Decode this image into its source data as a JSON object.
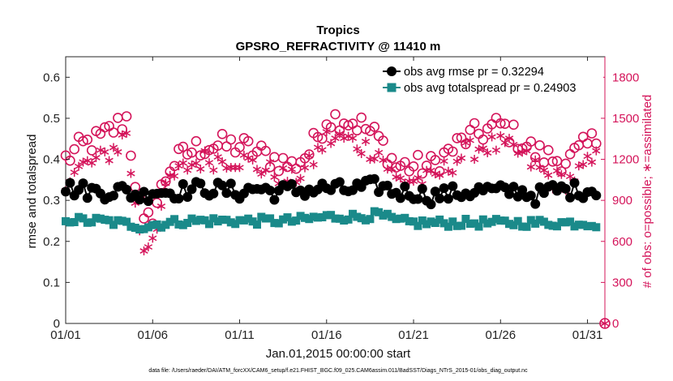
{
  "chart_data": {
    "type": "line",
    "title": "Tropics",
    "subtitle": "GPSRO_REFRACTIVITY @ 11410 m",
    "xlabel": "Jan.01,2015 00:00:00 start",
    "ylabel": "rmse and totalspread",
    "ylabel_right": "# of obs: o=possible; ∗=assimilated",
    "footnote": "data file: /Users/raeder/DAI/ATM_forcXX/CAM6_setup/f.e21.FHIST_BGC.f09_025.CAM6assim.011/BadSST/Diags_NTrS_2015-01/obs_diag_output.nc",
    "x_range": [
      1,
      32
    ],
    "x_ticks": [
      1,
      6,
      11,
      16,
      21,
      26,
      31
    ],
    "x_tick_labels": [
      "01/01",
      "01/06",
      "01/11",
      "01/16",
      "01/21",
      "01/26",
      "01/31"
    ],
    "ylim": [
      0,
      0.65
    ],
    "y_ticks": [
      0,
      0.1,
      0.2,
      0.3,
      0.4,
      0.5,
      0.6
    ],
    "y_tick_labels": [
      "0",
      "0.1",
      "0.2",
      "0.3",
      "0.4",
      "0.5",
      "0.6"
    ],
    "ylim_right": [
      0,
      1950
    ],
    "y_ticks_right": [
      0,
      300,
      600,
      900,
      1200,
      1500,
      1800
    ],
    "y_tick_labels_right": [
      "0",
      "300",
      "600",
      "900",
      "1200",
      "1500",
      "1800"
    ],
    "legend_position": "top-right",
    "series": [
      {
        "name": "obs avg rmse pr = 0.32294",
        "axis": "left",
        "marker": "circle",
        "color": "#000000",
        "anchors_x": [
          1,
          2,
          3,
          4,
          5,
          5.5,
          6,
          7,
          8,
          9,
          10,
          11,
          12,
          13,
          14,
          15,
          16,
          17,
          18,
          19,
          20,
          21,
          22,
          23,
          24,
          25,
          26,
          27,
          28,
          29,
          30,
          31,
          32
        ],
        "anchors_y": [
          0.33,
          0.325,
          0.32,
          0.325,
          0.315,
          0.31,
          0.325,
          0.32,
          0.325,
          0.33,
          0.325,
          0.32,
          0.33,
          0.32,
          0.325,
          0.325,
          0.33,
          0.325,
          0.33,
          0.335,
          0.32,
          0.32,
          0.31,
          0.315,
          0.32,
          0.325,
          0.32,
          0.325,
          0.31,
          0.325,
          0.325,
          0.325,
          0.33
        ]
      },
      {
        "name": "obs avg totalspread pr = 0.24903",
        "axis": "left",
        "marker": "square",
        "color": "#1a8a8a",
        "anchors_x": [
          1,
          2,
          3,
          4,
          5,
          5.5,
          6,
          7,
          8,
          9,
          10,
          11,
          12,
          13,
          14,
          15,
          16,
          17,
          18,
          19,
          20,
          21,
          22,
          23,
          24,
          25,
          26,
          27,
          28,
          29,
          30,
          31,
          32
        ],
        "anchors_y": [
          0.255,
          0.25,
          0.25,
          0.245,
          0.24,
          0.235,
          0.24,
          0.245,
          0.25,
          0.25,
          0.25,
          0.25,
          0.25,
          0.25,
          0.25,
          0.255,
          0.26,
          0.26,
          0.26,
          0.265,
          0.25,
          0.245,
          0.245,
          0.245,
          0.245,
          0.245,
          0.245,
          0.245,
          0.245,
          0.245,
          0.245,
          0.245,
          0.24
        ]
      },
      {
        "name": "possible",
        "axis": "right",
        "marker": "open-circle",
        "color": "#d4145a",
        "anchors_x": [
          1,
          2,
          3,
          4,
          4.5,
          5,
          5.5,
          6,
          7,
          8,
          9,
          10,
          11,
          12,
          13,
          14,
          15,
          16,
          17,
          18,
          19,
          20,
          21,
          22,
          23,
          24,
          25,
          26,
          27,
          28,
          29,
          30,
          31,
          32
        ],
        "anchors_y": [
          1200,
          1300,
          1350,
          1450,
          1500,
          1050,
          700,
          800,
          1150,
          1250,
          1300,
          1300,
          1300,
          1250,
          1200,
          1150,
          1250,
          1500,
          1500,
          1450,
          1350,
          1150,
          1150,
          1150,
          1250,
          1350,
          1400,
          1450,
          1350,
          1250,
          1200,
          1200,
          1300,
          1400
        ]
      },
      {
        "name": "assimilated",
        "axis": "right",
        "marker": "asterisk",
        "color": "#d4145a",
        "anchors_x": [
          1,
          2,
          3,
          4,
          4.5,
          5,
          5.5,
          6,
          7,
          8,
          9,
          10,
          11,
          12,
          13,
          14,
          15,
          16,
          17,
          18,
          19,
          20,
          21,
          22,
          23,
          24,
          25,
          26,
          27,
          28,
          29,
          30,
          31,
          32
        ],
        "anchors_y": [
          1050,
          1150,
          1200,
          1300,
          1400,
          850,
          550,
          650,
          1050,
          1150,
          1200,
          1200,
          1200,
          1150,
          1100,
          1050,
          1150,
          1350,
          1350,
          1300,
          1250,
          1050,
          1050,
          1050,
          1150,
          1250,
          1300,
          1300,
          1250,
          1150,
          1050,
          1050,
          1150,
          1250
        ]
      }
    ]
  }
}
